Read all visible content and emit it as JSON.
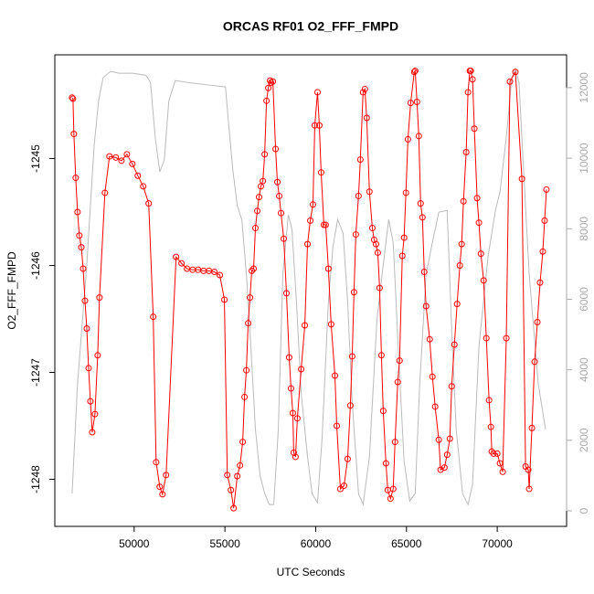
{
  "chart_data": {
    "type": "line",
    "title": "ORCAS RF01 O2_FFF_FMPD",
    "x_label": "UTC Seconds",
    "y_label": "O2_FFF_FMPD",
    "xlim": [
      45630,
      73820
    ],
    "xticks": [
      50000,
      55000,
      60000,
      65000,
      70000
    ],
    "ylim": [
      -1248.44,
      -1244.03
    ],
    "yticks": [
      -1248,
      -1247,
      -1246,
      -1245
    ],
    "y2lim": [
      -440,
      12930
    ],
    "y2ticks": [
      0,
      2000,
      4000,
      6000,
      8000,
      10000,
      12000
    ],
    "y2_color": "#aaaaaa",
    "series": [
      {
        "color": "#ff0000",
        "markers": true,
        "x": [
          46580,
          46630,
          46680,
          46780,
          46880,
          46980,
          47090,
          47190,
          47290,
          47390,
          47490,
          47590,
          47690,
          47840,
          47990,
          48090,
          48390,
          48640,
          48990,
          49300,
          49600,
          49900,
          50200,
          50500,
          50800,
          51050,
          51210,
          51410,
          51560,
          51760,
          52310,
          52610,
          52910,
          53220,
          53520,
          53820,
          54120,
          54420,
          54720,
          54970,
          55130,
          55330,
          55480,
          55680,
          55830,
          55980,
          56080,
          56180,
          56280,
          56380,
          56480,
          56580,
          56680,
          56780,
          56880,
          56980,
          57090,
          57190,
          57290,
          57390,
          57490,
          57540,
          57640,
          57790,
          57890,
          57990,
          58090,
          58240,
          58390,
          58540,
          58640,
          58740,
          58790,
          58890,
          58990,
          59200,
          59400,
          59550,
          59700,
          59850,
          59950,
          60100,
          60200,
          60300,
          60450,
          60550,
          60700,
          60850,
          61060,
          61160,
          61360,
          61560,
          61760,
          61910,
          62010,
          62110,
          62210,
          62360,
          62460,
          62610,
          62710,
          62810,
          62960,
          63120,
          63220,
          63320,
          63420,
          63520,
          63620,
          63720,
          63870,
          63970,
          64120,
          64270,
          64370,
          64520,
          64620,
          64770,
          64870,
          64970,
          65080,
          65230,
          65430,
          65480,
          65580,
          65680,
          65780,
          65880,
          65980,
          66080,
          66280,
          66430,
          66580,
          66780,
          66880,
          67090,
          67240,
          67390,
          67490,
          67640,
          67790,
          67940,
          68040,
          68140,
          68290,
          68390,
          68490,
          68540,
          68640,
          68740,
          68890,
          68990,
          69100,
          69250,
          69400,
          69550,
          69650,
          69700,
          69800,
          70000,
          70150,
          70300,
          70500,
          70700,
          71000,
          71360,
          71560,
          71710,
          71760,
          71910,
          72060,
          72210,
          72360,
          72510,
          72610,
          72710
        ],
        "values": [
          -1244.43,
          -1244.44,
          -1244.77,
          -1245.18,
          -1245.5,
          -1245.72,
          -1245.83,
          -1246.03,
          -1246.33,
          -1246.59,
          -1246.96,
          -1247.27,
          -1247.56,
          -1247.39,
          -1246.84,
          -1246.3,
          -1245.32,
          -1244.98,
          -1244.99,
          -1245.02,
          -1244.96,
          -1245.05,
          -1245.16,
          -1245.26,
          -1245.42,
          -1246.48,
          -1247.84,
          -1248.07,
          -1248.14,
          -1247.96,
          -1245.92,
          -1245.98,
          -1246.03,
          -1246.04,
          -1246.04,
          -1246.05,
          -1246.05,
          -1246.06,
          -1246.09,
          -1246.32,
          -1247.96,
          -1248.1,
          -1248.27,
          -1247.97,
          -1247.87,
          -1247.65,
          -1247.23,
          -1246.98,
          -1246.54,
          -1246.3,
          -1246.05,
          -1246.03,
          -1245.65,
          -1245.49,
          -1245.36,
          -1245.26,
          -1245.21,
          -1244.96,
          -1244.46,
          -1244.34,
          -1244.27,
          -1244.29,
          -1244.28,
          -1244.91,
          -1245.22,
          -1245.35,
          -1245.51,
          -1245.75,
          -1246.26,
          -1246.86,
          -1247.15,
          -1247.38,
          -1247.75,
          -1247.79,
          -1247.43,
          -1246.97,
          -1246.56,
          -1245.8,
          -1245.58,
          -1245.43,
          -1244.69,
          -1244.38,
          -1244.69,
          -1245.13,
          -1245.62,
          -1245.62,
          -1246.03,
          -1246.55,
          -1247.03,
          -1247.5,
          -1248.09,
          -1248.06,
          -1247.81,
          -1247.31,
          -1246.85,
          -1246.25,
          -1245.71,
          -1245.35,
          -1245.01,
          -1244.38,
          -1244.35,
          -1244.62,
          -1245.31,
          -1245.65,
          -1245.76,
          -1245.8,
          -1245.88,
          -1246.21,
          -1246.84,
          -1247.36,
          -1247.85,
          -1248.1,
          -1248.18,
          -1248.09,
          -1247.65,
          -1247.09,
          -1246.89,
          -1245.91,
          -1245.74,
          -1245.32,
          -1244.82,
          -1244.48,
          -1244.19,
          -1244.18,
          -1244.47,
          -1244.79,
          -1245.42,
          -1245.55,
          -1246.06,
          -1246.38,
          -1246.69,
          -1247.04,
          -1247.32,
          -1247.63,
          -1247.91,
          -1247.89,
          -1247.77,
          -1247.62,
          -1247.13,
          -1246.74,
          -1246.36,
          -1246.0,
          -1245.8,
          -1245.4,
          -1244.94,
          -1244.38,
          -1244.18,
          -1244.18,
          -1244.26,
          -1244.72,
          -1245.37,
          -1245.6,
          -1245.89,
          -1246.14,
          -1246.68,
          -1247.26,
          -1247.51,
          -1247.74,
          -1247.76,
          -1247.76,
          -1247.85,
          -1247.93,
          -1246.68,
          -1244.28,
          -1244.19,
          -1245.19,
          -1247.88,
          -1247.91,
          -1248.09,
          -1247.52,
          -1246.9,
          -1246.53,
          -1246.16,
          -1245.87,
          -1245.58,
          -1245.29
        ]
      },
      {
        "color": "#bbbbbb",
        "axis": "y2",
        "markers": false,
        "x": [
          46580,
          46880,
          47390,
          47790,
          48040,
          48290,
          48690,
          49150,
          49900,
          50650,
          50900,
          51160,
          51410,
          51660,
          51910,
          52260,
          52910,
          54170,
          55030,
          55180,
          55430,
          55680,
          55930,
          56180,
          56430,
          56680,
          56930,
          57190,
          57440,
          57690,
          57940,
          58190,
          58490,
          58690,
          58940,
          59200,
          59550,
          59800,
          60100,
          60350,
          60700,
          60950,
          61210,
          61510,
          61760,
          62010,
          62360,
          62610,
          62960,
          63370,
          63720,
          64020,
          64270,
          64570,
          64870,
          65180,
          65480,
          65730,
          66080,
          66480,
          66780,
          67240,
          67490,
          67740,
          68090,
          68390,
          68640,
          68990,
          69500,
          69900,
          70150,
          70500,
          70800,
          71000,
          71200,
          71460,
          71760,
          72010,
          72260,
          72660
        ],
        "values": [
          490,
          3600,
          6970,
          10330,
          11630,
          12280,
          12460,
          12410,
          12410,
          12350,
          12150,
          10590,
          9610,
          9950,
          11630,
          12200,
          12150,
          12070,
          12020,
          11110,
          9690,
          8650,
          8260,
          6710,
          4640,
          2310,
          1010,
          490,
          180,
          180,
          2310,
          6710,
          8390,
          8000,
          5930,
          3340,
          1530,
          490,
          230,
          2050,
          5930,
          7490,
          8260,
          7870,
          5930,
          3080,
          490,
          180,
          1530,
          5410,
          6970,
          8260,
          7610,
          4380,
          1400,
          280,
          490,
          3600,
          6710,
          7740,
          8470,
          8520,
          5150,
          2310,
          490,
          180,
          750,
          4640,
          7230,
          8520,
          9040,
          10590,
          12280,
          12540,
          12150,
          9560,
          6710,
          5150,
          3600,
          2310
        ]
      }
    ]
  }
}
